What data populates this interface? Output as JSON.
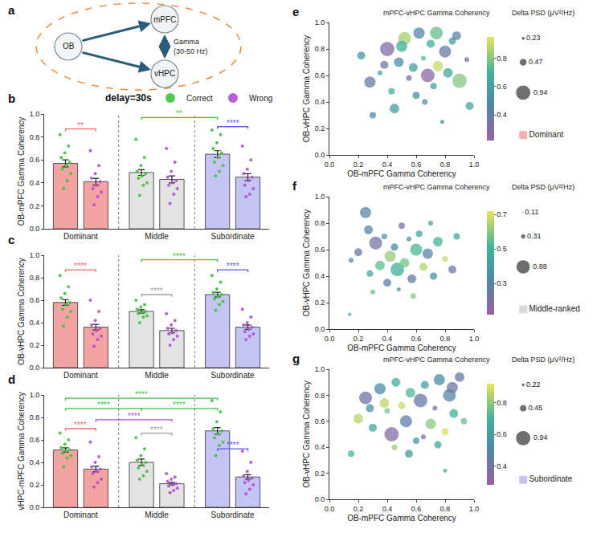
{
  "chart_data": [
    {
      "type": "diagram",
      "panel": "a",
      "nodes": [
        "OB",
        "mPFC",
        "vHPC"
      ],
      "edge_label": "Gamma (30-50 Hz)"
    },
    {
      "type": "bar",
      "panel": "b",
      "title": "delay=30s",
      "y_label": "OB-mPFC Gamma Coherency",
      "categories": [
        "Dominant",
        "Middle",
        "Subordinate"
      ],
      "colors": [
        "#f4a3a3",
        "#e3e3e3",
        "#c5c5f5"
      ],
      "ylim": [
        0,
        1
      ],
      "yticks": [
        {
          "value": 0,
          "label": "0.0"
        },
        0.2,
        0.4,
        0.6,
        0.8,
        {
          "value": 1,
          "label": "1.0"
        }
      ],
      "legend": "top right",
      "series": [
        {
          "name": "Correct",
          "color": "#3cc43c",
          "values": [
            0.57,
            0.49,
            0.65
          ],
          "errors": [
            0.03,
            0.025,
            0.03
          ],
          "points": [
            [
              0.82,
              0.72,
              0.66,
              0.62,
              0.58,
              0.55,
              0.52,
              0.48,
              0.42,
              0.35
            ],
            [
              0.78,
              0.62,
              0.55,
              0.5,
              0.48,
              0.46,
              0.44,
              0.4,
              0.38,
              0.29
            ],
            [
              0.86,
              0.82,
              0.75,
              0.7,
              0.66,
              0.62,
              0.58,
              0.55,
              0.5,
              0.46
            ]
          ]
        },
        {
          "name": "Wrong",
          "color": "#b04fd4",
          "values": [
            0.41,
            0.43,
            0.45
          ],
          "errors": [
            0.03,
            0.03,
            0.03
          ],
          "points": [
            [
              0.68,
              0.55,
              0.48,
              0.44,
              0.41,
              0.38,
              0.35,
              0.32,
              0.28,
              0.21
            ],
            [
              0.7,
              0.58,
              0.5,
              0.45,
              0.42,
              0.4,
              0.38,
              0.35,
              0.3,
              0.22
            ],
            [
              0.72,
              0.6,
              0.52,
              0.48,
              0.45,
              0.42,
              0.38,
              0.35,
              0.3,
              0.28
            ]
          ]
        }
      ],
      "brackets": [
        {
          "text": "**",
          "from": [
            0,
            0
          ],
          "to": [
            0,
            1
          ],
          "y": 0.87,
          "color": "#f06b6b"
        },
        {
          "text": "**",
          "from": [
            1,
            0
          ],
          "to": [
            2,
            0
          ],
          "y": 0.97,
          "color": "#3cc43c"
        },
        {
          "text": "****",
          "from": [
            2,
            0
          ],
          "to": [
            2,
            1
          ],
          "y": 0.89,
          "color": "#5a5af0"
        }
      ]
    },
    {
      "type": "bar",
      "panel": "c",
      "y_label": "OB-vHPC Gamma Coherency",
      "categories": [
        "Dominant",
        "Middle",
        "Subordinate"
      ],
      "colors": [
        "#f4a3a3",
        "#e3e3e3",
        "#c5c5f5"
      ],
      "ylim": [
        0,
        1
      ],
      "yticks": [
        {
          "value": 0,
          "label": "0.0"
        },
        0.2,
        0.4,
        0.6,
        0.8,
        {
          "value": 1,
          "label": "1.0"
        }
      ],
      "series": [
        {
          "name": "Correct",
          "color": "#3cc43c",
          "values": [
            0.58,
            0.5,
            0.65
          ],
          "errors": [
            0.025,
            0.015,
            0.02
          ],
          "points": [
            [
              0.82,
              0.72,
              0.66,
              0.62,
              0.58,
              0.56,
              0.52,
              0.5,
              0.45,
              0.37
            ],
            [
              0.6,
              0.56,
              0.54,
              0.52,
              0.5,
              0.49,
              0.48,
              0.46,
              0.45,
              0.4
            ],
            [
              0.82,
              0.76,
              0.7,
              0.67,
              0.65,
              0.63,
              0.61,
              0.59,
              0.56,
              0.51
            ]
          ]
        },
        {
          "name": "Wrong",
          "color": "#b04fd4",
          "values": [
            0.36,
            0.33,
            0.36
          ],
          "errors": [
            0.025,
            0.02,
            0.02
          ],
          "points": [
            [
              0.6,
              0.5,
              0.42,
              0.38,
              0.35,
              0.33,
              0.3,
              0.28,
              0.25,
              0.19
            ],
            [
              0.48,
              0.42,
              0.38,
              0.35,
              0.33,
              0.31,
              0.3,
              0.28,
              0.25,
              0.2
            ],
            [
              0.52,
              0.45,
              0.4,
              0.38,
              0.36,
              0.34,
              0.32,
              0.3,
              0.28,
              0.25
            ]
          ]
        }
      ],
      "brackets": [
        {
          "text": "****",
          "from": [
            0,
            0
          ],
          "to": [
            0,
            1
          ],
          "y": 0.87,
          "color": "#f06b6b"
        },
        {
          "text": "****",
          "from": [
            1,
            0
          ],
          "to": [
            1,
            1
          ],
          "y": 0.65,
          "color": "#a0a0a0"
        },
        {
          "text": "****",
          "from": [
            1,
            0
          ],
          "to": [
            2,
            0
          ],
          "y": 0.96,
          "color": "#3cc43c"
        },
        {
          "text": "****",
          "from": [
            2,
            0
          ],
          "to": [
            2,
            1
          ],
          "y": 0.87,
          "color": "#5a5af0"
        }
      ]
    },
    {
      "type": "bar",
      "panel": "d",
      "y_label": "vHPC-mPFC Gamma Coherency",
      "categories": [
        "Dominant",
        "Middle",
        "Subordinate"
      ],
      "colors": [
        "#f4a3a3",
        "#e3e3e3",
        "#c5c5f5"
      ],
      "ylim": [
        0,
        1
      ],
      "yticks": [
        {
          "value": 0,
          "label": "0.0"
        },
        0.2,
        0.4,
        0.6,
        0.8,
        {
          "value": 1,
          "label": "1.0"
        }
      ],
      "series": [
        {
          "name": "Correct",
          "color": "#3cc43c",
          "values": [
            0.51,
            0.4,
            0.68
          ],
          "errors": [
            0.02,
            0.03,
            0.03
          ],
          "points": [
            [
              0.66,
              0.6,
              0.56,
              0.53,
              0.51,
              0.5,
              0.48,
              0.46,
              0.44,
              0.36
            ],
            [
              0.62,
              0.52,
              0.46,
              0.42,
              0.4,
              0.38,
              0.35,
              0.32,
              0.28,
              0.25
            ],
            [
              0.95,
              0.85,
              0.76,
              0.7,
              0.68,
              0.65,
              0.62,
              0.58,
              0.55,
              0.46
            ]
          ]
        },
        {
          "name": "Wrong",
          "color": "#b04fd4",
          "values": [
            0.34,
            0.21,
            0.27
          ],
          "errors": [
            0.025,
            0.01,
            0.02
          ],
          "points": [
            [
              0.58,
              0.45,
              0.4,
              0.36,
              0.34,
              0.32,
              0.3,
              0.25,
              0.22,
              0.18
            ],
            [
              0.3,
              0.27,
              0.25,
              0.23,
              0.21,
              0.2,
              0.19,
              0.17,
              0.15,
              0.13
            ],
            [
              0.5,
              0.4,
              0.32,
              0.28,
              0.26,
              0.24,
              0.22,
              0.2,
              0.16,
              0.12
            ]
          ]
        }
      ],
      "brackets": [
        {
          "text": "****",
          "from": [
            0,
            0
          ],
          "to": [
            2,
            0
          ],
          "y": 0.97,
          "color": "#3cc43c"
        },
        {
          "text": "****",
          "from": [
            0,
            0
          ],
          "to": [
            1,
            0
          ],
          "y": 0.88,
          "color": "#3cc43c"
        },
        {
          "text": "****",
          "from": [
            1,
            0
          ],
          "to": [
            2,
            0
          ],
          "y": 0.88,
          "color": "#3cc43c"
        },
        {
          "text": "****",
          "from": [
            0,
            1
          ],
          "to": [
            1,
            1
          ],
          "y": 0.78,
          "color": "#b04fd4"
        },
        {
          "text": "****",
          "from": [
            0,
            0
          ],
          "to": [
            0,
            1
          ],
          "y": 0.7,
          "color": "#f06b6b"
        },
        {
          "text": "****",
          "from": [
            1,
            0
          ],
          "to": [
            1,
            1
          ],
          "y": 0.66,
          "color": "#a0a0a0"
        },
        {
          "text": "****",
          "from": [
            2,
            0
          ],
          "to": [
            2,
            1
          ],
          "y": 0.52,
          "color": "#5a5af0"
        }
      ]
    },
    {
      "type": "scatter",
      "panel": "e",
      "group": "Dominant",
      "color": "#f4b0b0",
      "x_label": "OB-mPFC Gamma Coherency",
      "y_label": "OB-vHPC Gamma Coherency",
      "xlim": [
        0,
        1
      ],
      "ylim": [
        0,
        1
      ],
      "xticks": [
        {
          "value": 0,
          "label": "0.0"
        },
        0.2,
        0.4,
        0.6,
        0.8,
        {
          "value": 1,
          "label": "1.0"
        }
      ],
      "yticks": [
        {
          "value": 0,
          "label": "0.0"
        },
        0.2,
        0.4,
        0.6,
        0.8,
        {
          "value": 1,
          "label": "1.0"
        }
      ],
      "x": [
        0.22,
        0.28,
        0.35,
        0.4,
        0.43,
        0.48,
        0.52,
        0.55,
        0.58,
        0.6,
        0.62,
        0.65,
        0.68,
        0.7,
        0.72,
        0.75,
        0.78,
        0.8,
        0.82,
        0.85,
        0.88,
        0.9,
        0.95,
        0.97,
        0.3,
        0.45,
        0.5,
        0.66,
        0.74,
        0.38
      ],
      "values": [
        0.75,
        0.55,
        0.62,
        0.8,
        0.48,
        0.7,
        0.88,
        0.58,
        0.66,
        0.45,
        0.92,
        0.73,
        0.6,
        0.84,
        0.52,
        0.67,
        0.25,
        0.78,
        0.62,
        0.86,
        0.9,
        0.56,
        0.72,
        0.37,
        0.3,
        0.35,
        0.82,
        0.4,
        0.92,
        0.68
      ],
      "color_label": "mPFC-vHPC Gamma Coherency",
      "color_values": [
        0.55,
        0.4,
        0.62,
        0.3,
        0.7,
        0.48,
        0.85,
        0.35,
        0.6,
        0.52,
        0.45,
        0.72,
        0.28,
        0.66,
        0.58,
        0.9,
        0.5,
        0.38,
        0.64,
        0.55,
        0.42,
        0.8,
        0.33,
        0.61,
        0.47,
        0.57,
        0.68,
        0.44,
        0.75,
        0.36
      ],
      "color_range": [
        0.22,
        0.95
      ],
      "color_ticks": [
        0.4,
        0.6,
        0.8
      ],
      "size_label": "Delta PSD (μV²/Hz)",
      "sizes": [
        0.5,
        0.7,
        0.3,
        0.9,
        0.4,
        0.6,
        0.8,
        0.35,
        0.55,
        0.45,
        0.7,
        0.3,
        0.85,
        0.5,
        0.4,
        0.65,
        0.25,
        0.75,
        0.6,
        0.45,
        0.55,
        0.9,
        0.3,
        0.5,
        0.4,
        0.6,
        0.7,
        0.35,
        0.8,
        0.5
      ],
      "size_ticks": [
        0.23,
        0.47,
        0.94
      ]
    },
    {
      "type": "scatter",
      "panel": "f",
      "group": "Middle-ranked",
      "color": "#d9d9d9",
      "x_label": "OB-mPFC Gamma Coherency",
      "y_label": "OB-vHPC Gamma Coherency",
      "xlim": [
        0,
        1
      ],
      "ylim": [
        0,
        1
      ],
      "xticks": [
        {
          "value": 0,
          "label": "0.0"
        },
        0.2,
        0.4,
        0.6,
        0.8,
        {
          "value": 1,
          "label": "1.0"
        }
      ],
      "yticks": [
        {
          "value": 0,
          "label": "0.0"
        },
        0.2,
        0.4,
        0.6,
        0.8,
        {
          "value": 1,
          "label": "1.0"
        }
      ],
      "x": [
        0.15,
        0.2,
        0.25,
        0.28,
        0.32,
        0.35,
        0.38,
        0.4,
        0.42,
        0.45,
        0.47,
        0.5,
        0.52,
        0.55,
        0.57,
        0.6,
        0.62,
        0.65,
        0.68,
        0.7,
        0.72,
        0.75,
        0.8,
        0.85,
        0.88,
        0.3,
        0.48,
        0.58,
        0.27,
        0.14
      ],
      "values": [
        0.52,
        0.58,
        0.88,
        0.42,
        0.65,
        0.48,
        0.7,
        0.35,
        0.55,
        0.62,
        0.45,
        0.78,
        0.5,
        0.68,
        0.38,
        0.6,
        0.72,
        0.47,
        0.57,
        0.8,
        0.4,
        0.66,
        0.53,
        0.45,
        0.7,
        0.28,
        0.3,
        0.25,
        0.75,
        0.11
      ],
      "color_label": "mPFC-vHPC Gamma Coherency",
      "color_values": [
        0.35,
        0.25,
        0.3,
        0.45,
        0.22,
        0.55,
        0.4,
        0.28,
        0.62,
        0.33,
        0.48,
        0.2,
        0.58,
        0.38,
        0.27,
        0.52,
        0.44,
        0.65,
        0.3,
        0.42,
        0.36,
        0.5,
        0.68,
        0.24,
        0.46,
        0.57,
        0.35,
        0.6,
        0.32,
        0.4
      ],
      "color_range": [
        0.12,
        0.72
      ],
      "color_ticks": [
        0.3,
        0.5,
        0.7
      ],
      "size_label": "Delta PSD (μV²/Hz)",
      "sizes": [
        0.3,
        0.5,
        0.7,
        0.4,
        0.8,
        0.6,
        0.35,
        0.5,
        0.7,
        0.45,
        0.85,
        0.4,
        0.6,
        0.3,
        0.55,
        0.75,
        0.4,
        0.5,
        0.65,
        0.3,
        0.45,
        0.6,
        0.35,
        0.5,
        0.4,
        0.3,
        0.25,
        0.35,
        0.55,
        0.15
      ],
      "size_ticks": [
        0.11,
        0.31,
        0.88
      ]
    },
    {
      "type": "scatter",
      "panel": "g",
      "group": "Subordinate",
      "color": "#c5c5f5",
      "x_label": "OB-mPFC Gamma Coherency",
      "y_label": "OB-vHPC Gamma Coherency",
      "xlim": [
        0,
        1
      ],
      "ylim": [
        0,
        1
      ],
      "xticks": [
        {
          "value": 0,
          "label": "0.0"
        },
        0.2,
        0.4,
        0.6,
        0.8,
        {
          "value": 1,
          "label": "1.0"
        }
      ],
      "yticks": [
        {
          "value": 0,
          "label": "0.0"
        },
        0.2,
        0.4,
        0.6,
        0.8,
        {
          "value": 1,
          "label": "1.0"
        }
      ],
      "x": [
        0.15,
        0.2,
        0.25,
        0.3,
        0.35,
        0.4,
        0.43,
        0.46,
        0.5,
        0.53,
        0.56,
        0.6,
        0.63,
        0.66,
        0.7,
        0.73,
        0.76,
        0.8,
        0.83,
        0.86,
        0.9,
        0.93,
        0.45,
        0.55,
        0.65,
        0.75,
        0.38,
        0.85,
        0.8,
        0.28
      ],
      "values": [
        0.35,
        0.62,
        0.78,
        0.55,
        0.85,
        0.68,
        0.5,
        0.9,
        0.72,
        0.6,
        0.82,
        0.45,
        0.76,
        0.88,
        0.58,
        0.7,
        0.92,
        0.52,
        0.8,
        0.66,
        0.94,
        0.6,
        0.4,
        0.35,
        0.48,
        0.42,
        0.74,
        0.86,
        0.22,
        0.7
      ],
      "color_label": "mPFC-vHPC Gamma Coherency",
      "color_values": [
        0.7,
        0.85,
        0.4,
        0.62,
        0.5,
        0.78,
        0.35,
        0.66,
        0.88,
        0.45,
        0.72,
        0.55,
        0.42,
        0.6,
        0.8,
        0.38,
        0.52,
        0.9,
        0.48,
        0.68,
        0.44,
        0.75,
        0.82,
        0.58,
        0.36,
        0.64,
        0.86,
        0.4,
        0.7,
        0.54
      ],
      "color_range": [
        0.28,
        0.92
      ],
      "color_ticks": [
        0.4,
        0.6,
        0.8
      ],
      "size_label": "Delta PSD (μV²/Hz)",
      "sizes": [
        0.4,
        0.6,
        0.8,
        0.5,
        0.7,
        0.35,
        0.9,
        0.55,
        0.45,
        0.75,
        0.6,
        0.4,
        0.85,
        0.5,
        0.65,
        0.3,
        0.7,
        0.45,
        0.8,
        0.55,
        0.6,
        0.4,
        0.35,
        0.5,
        0.3,
        0.45,
        0.6,
        0.7,
        0.25,
        0.5
      ],
      "size_ticks": [
        0.22,
        0.45,
        0.94
      ]
    }
  ]
}
